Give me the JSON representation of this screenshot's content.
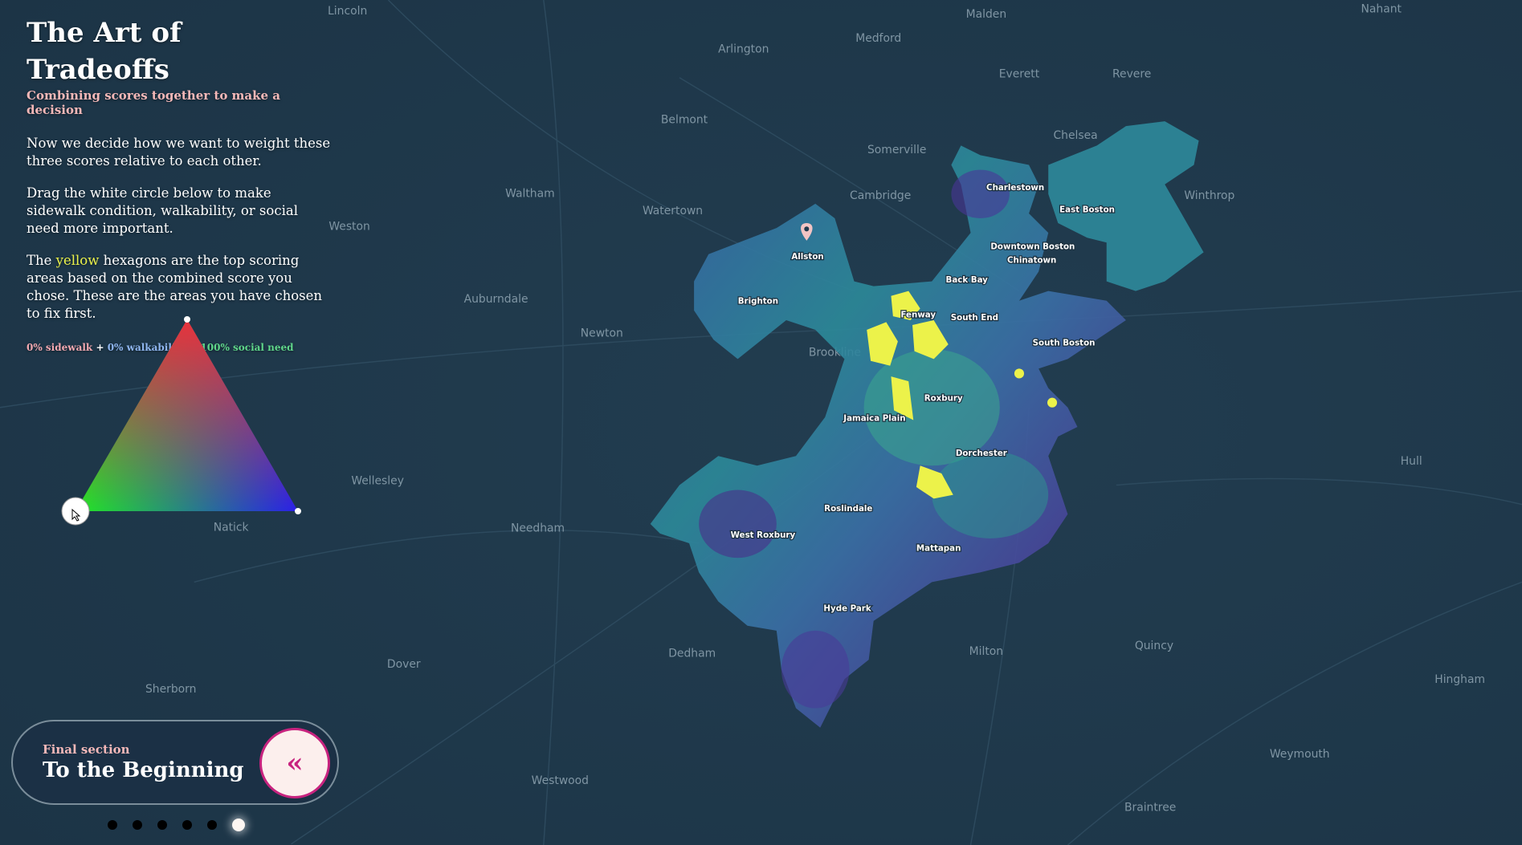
{
  "header": {
    "title": "The Art of Tradeoffs",
    "subtitle": "Combining scores together to make a decision"
  },
  "body": {
    "p1": "Now we decide how we want to weight these three scores relative to each other.",
    "p2": "Drag the white circle below to make sidewalk condition, walkability, or social need more important.",
    "p3_pre": "The ",
    "p3_highlight": "yellow",
    "p3_post": " hexagons are the top scoring areas based on the combined score you chose. These are the areas you have chosen to fix first."
  },
  "weights": {
    "sidewalk": "0% sidewalk",
    "walkability": "0% walkability",
    "social": "100% social need",
    "plus": "+",
    "values": {
      "sidewalk": 0,
      "walkability": 0,
      "social_need": 100
    }
  },
  "colors": {
    "sidewalk": "#e8323c",
    "walkability": "#2a1fe8",
    "social_need": "#22e822",
    "top_areas": "#ecf24a",
    "accent": "#c8237f"
  },
  "nav": {
    "kicker": "Final section",
    "title": "To the Beginning",
    "button_icon": "double-chevron-left-icon",
    "button_glyph": "«",
    "pages": 6,
    "current_page": 6
  },
  "map": {
    "towns": [
      "Lincoln",
      "Malden",
      "Nahant",
      "Arlington",
      "Medford",
      "Everett",
      "Revere",
      "Belmont",
      "Somerville",
      "Chelsea",
      "Waltham",
      "Watertown",
      "Cambridge",
      "Winthrop",
      "Weston",
      "Auburndale",
      "Newton",
      "Brookline",
      "Wellesley",
      "Needham",
      "Natick",
      "Dover",
      "Sherborn",
      "Dedham",
      "Milton",
      "Quincy",
      "Weymouth",
      "Braintree",
      "Westwood",
      "Hingham",
      "Hull"
    ],
    "neighborhoods": [
      "Charlestown",
      "East Boston",
      "Allston",
      "Brighton",
      "Downtown Boston",
      "Chinatown",
      "Back Bay",
      "Fenway",
      "South End",
      "South Boston",
      "Roxbury",
      "Jamaica Plain",
      "Dorchester",
      "Roslindale",
      "West Roxbury",
      "Mattapan",
      "Hyde Park"
    ]
  }
}
